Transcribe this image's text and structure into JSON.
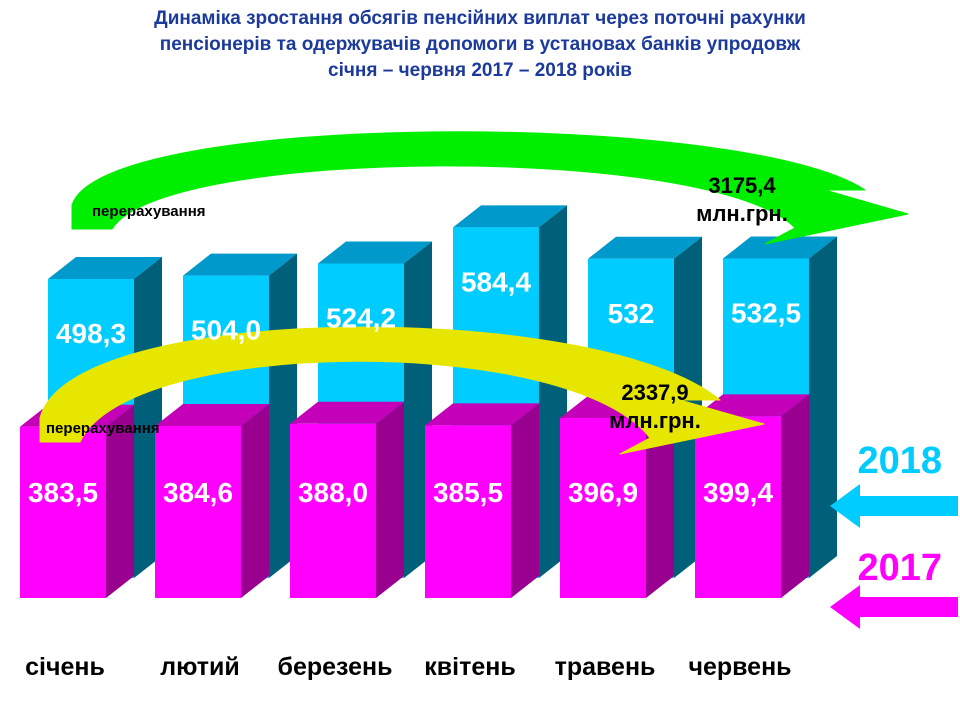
{
  "title_lines": [
    "Динаміка зростання обсягів пенсійних виплат через поточні рахунки",
    "пенсіонерів та одержувачів допомоги в установах банків упродовж",
    "січня – червня 2017 – 2018 років"
  ],
  "colors": {
    "title": "#1b3a9c",
    "y2017_front": "#ff00ff",
    "y2017_side": "#9a0090",
    "y2017_top": "#c400b8",
    "y2018_front": "#00ccff",
    "y2018_side": "#00607a",
    "y2018_top": "#0099cc",
    "arrow2018": "#00ee00",
    "arrow2017": "#e6e600",
    "legend2018": "#00ccff",
    "legend2017": "#ff00ff"
  },
  "chart_data": {
    "type": "bar",
    "stacked": true,
    "categories": [
      "січень",
      "лютий",
      "березень",
      "квітень",
      "травень",
      "червень"
    ],
    "series": [
      {
        "name": "2017",
        "values": [
          383.5,
          384.6,
          388.0,
          385.5,
          396.9,
          399.4
        ],
        "labels": [
          "383,5",
          "384,6",
          "388,0",
          "385,5",
          "396,9",
          "399,4"
        ]
      },
      {
        "name": "2018",
        "values": [
          498.3,
          504.0,
          524.2,
          584.4,
          532,
          532.5
        ],
        "labels": [
          "498,3",
          "504,0",
          "524,2",
          "584,4",
          "532",
          "532,5"
        ]
      }
    ],
    "annotations": [
      {
        "series": "2018",
        "label": "перерахування",
        "total_value": "3175,4",
        "total_unit": "млн.грн."
      },
      {
        "series": "2017",
        "label": "перерахування",
        "total_value": "2337,9",
        "total_unit": "млн.грн."
      }
    ],
    "legend": [
      "2018",
      "2017"
    ],
    "legend_position": "right"
  }
}
